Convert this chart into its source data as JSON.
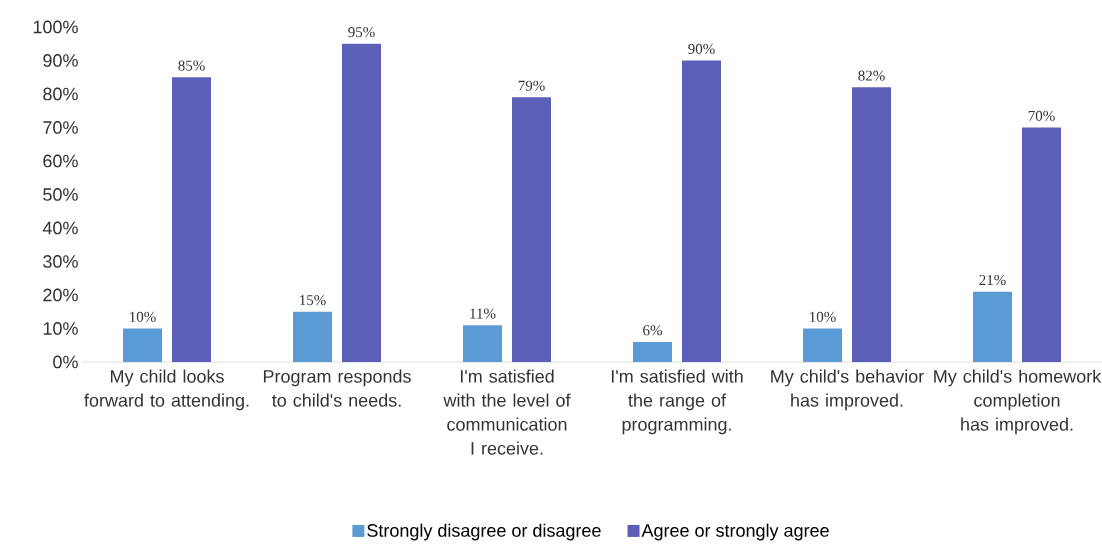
{
  "chart_data": {
    "type": "bar",
    "categories": [
      "My child looks forward to attending.",
      "Program responds to child's needs.",
      "I'm satisfied with the level of communication I receive.",
      "I'm satisfied with the range of programming.",
      "My child's behavior has improved.",
      "My child's homework completion has improved."
    ],
    "series": [
      {
        "name": "Strongly disagree or disagree",
        "color": "#5b9bd5",
        "values": [
          10,
          15,
          11,
          6,
          10,
          21
        ],
        "value_labels": [
          "10%",
          "15%",
          "11%",
          "6%",
          "10%",
          "21%"
        ]
      },
      {
        "name": "Agree or strongly agree",
        "color": "#5b5fb8",
        "values": [
          85,
          95,
          79,
          90,
          82,
          70
        ],
        "value_labels": [
          "85%",
          "95%",
          "79%",
          "90%",
          "82%",
          "70%"
        ]
      }
    ],
    "ylim": [
      0,
      100
    ],
    "yticks": [
      {
        "value": 0,
        "label": "0%"
      },
      {
        "value": 10,
        "label": "10%"
      },
      {
        "value": 20,
        "label": "20%"
      },
      {
        "value": 30,
        "label": "30%"
      },
      {
        "value": 40,
        "label": "40%"
      },
      {
        "value": 50,
        "label": "50%"
      },
      {
        "value": 60,
        "label": "60%"
      },
      {
        "value": 70,
        "label": "70%"
      },
      {
        "value": 80,
        "label": "80%"
      },
      {
        "value": 90,
        "label": "90%"
      },
      {
        "value": 100,
        "label": "100%"
      }
    ],
    "grid": false,
    "legend": "bottom"
  }
}
